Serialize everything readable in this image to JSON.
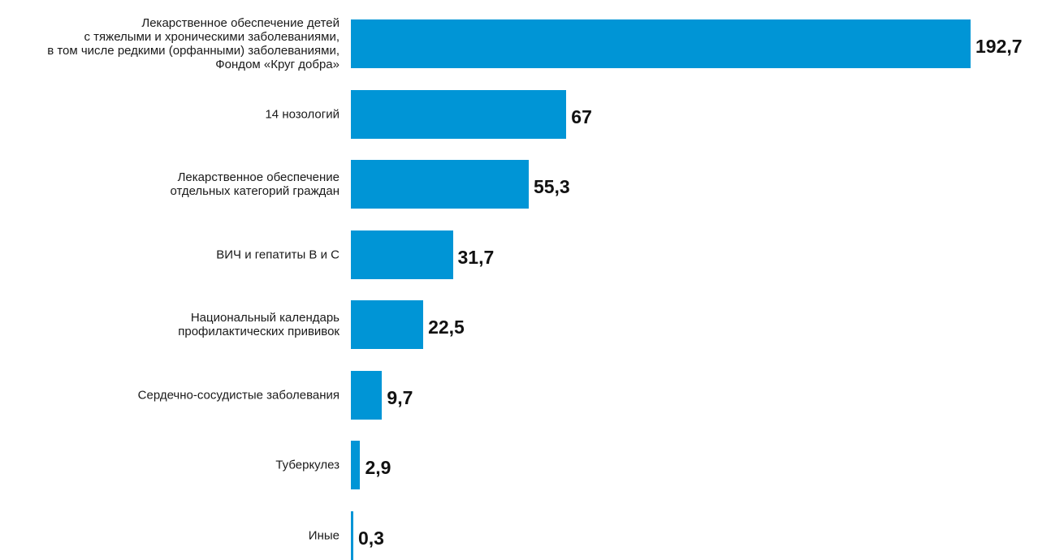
{
  "chart_data": {
    "type": "bar",
    "orientation": "horizontal",
    "title": "",
    "xlabel": "",
    "ylabel": "",
    "grid": false,
    "legend": "none",
    "bar_color": "#0095d6",
    "categories": [
      [
        "Лекарственное обеспечение детей",
        "с тяжелыми и хроническими заболеваниями,",
        "в том числе редкими (орфанными) заболеваниями,",
        "Фондом «Круг добра»"
      ],
      [
        "14 нозологий"
      ],
      [
        "Лекарственное обеспечение",
        "отдельных категорий граждан"
      ],
      [
        "ВИЧ и гепатиты В и С"
      ],
      [
        "Национальный календарь",
        "профилактических прививок"
      ],
      [
        "Сердечно-сосудистые заболевания"
      ],
      [
        "Туберкулез"
      ],
      [
        "Иные"
      ]
    ],
    "values": [
      192.7,
      67,
      55.3,
      31.7,
      22.5,
      9.7,
      2.9,
      0.3
    ],
    "value_labels": [
      "192,7",
      "67",
      "55,3",
      "31,7",
      "22,5",
      "9,7",
      "2,9",
      "0,3"
    ],
    "xlim": [
      0,
      192.7
    ]
  }
}
